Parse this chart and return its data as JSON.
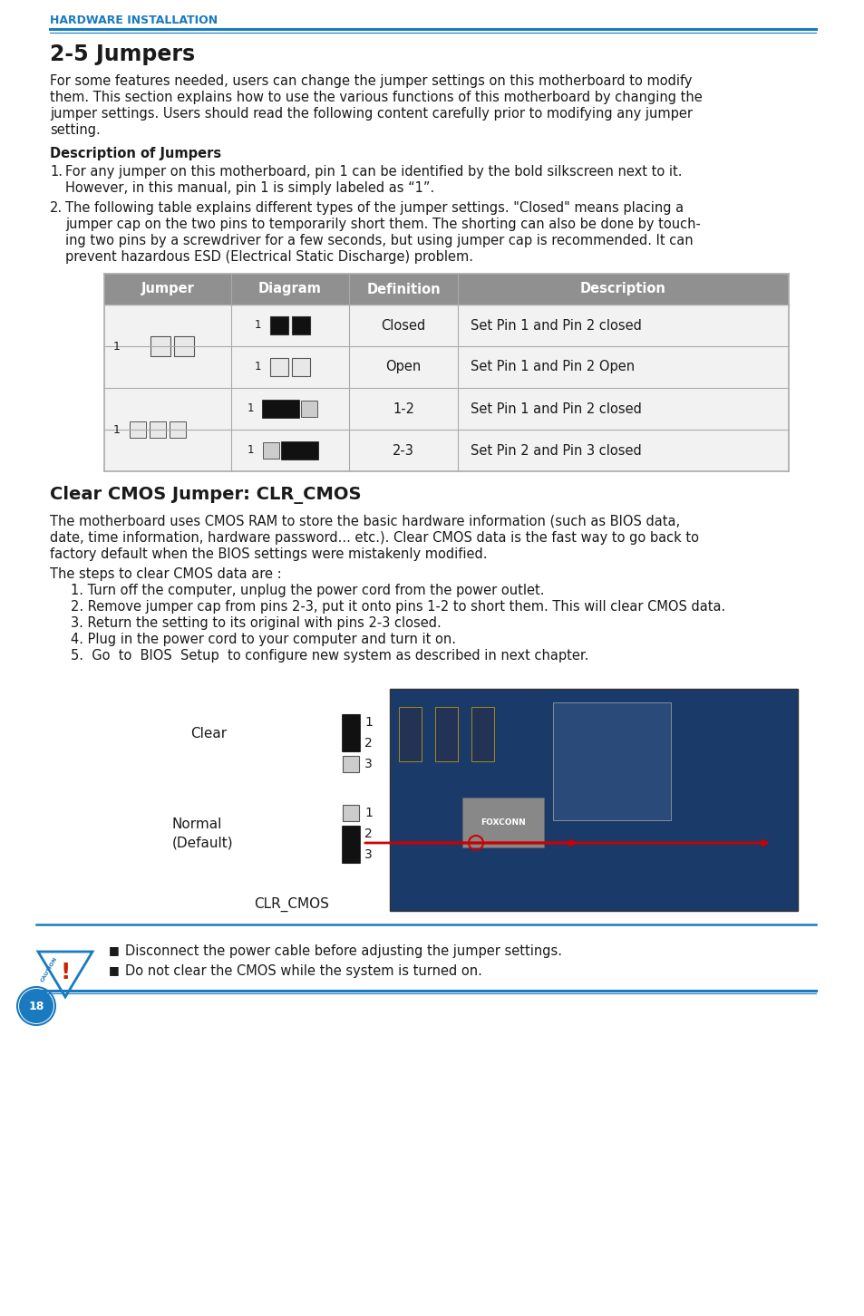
{
  "page_bg": "#ffffff",
  "header_text": "HARDWARE INSTALLATION",
  "header_color": "#1a7abf",
  "blue_color": "#1a7abf",
  "title": "2-5 Jumpers",
  "para1_lines": [
    "For some features needed, users can change the jumper settings on this motherboard to modify",
    "them. This section explains how to use the various functions of this motherboard by changing the",
    "jumper settings. Users should read the following content carefully prior to modifying any jumper",
    "setting."
  ],
  "desc_title": "Description of Jumpers",
  "item1_lines": [
    "For any jumper on this motherboard, pin 1 can be identified by the bold silkscreen next to it.",
    "However, in this manual, pin 1 is simply labeled as “1”."
  ],
  "item2_lines": [
    "The following table explains different types of the jumper settings. \"Closed\" means placing a",
    "jumper cap on the two pins to temporarily short them. The shorting can also be done by touch-",
    "ing two pins by a screwdriver for a few seconds, but using jumper cap is recommended. It can",
    "prevent hazardous ESD (Electrical Static Discharge) problem."
  ],
  "table_hdr_bg": "#909090",
  "table_hdr_cols": [
    "Jumper",
    "Diagram",
    "Definition",
    "Description"
  ],
  "table_row_descs": [
    "Set Pin 1 and Pin 2 closed",
    "Set Pin 1 and Pin 2 Open",
    "Set Pin 1 and Pin 2 closed",
    "Set Pin 2 and Pin 3 closed"
  ],
  "table_defs": [
    "Closed",
    "Open",
    "1-2",
    "2-3"
  ],
  "section_title": "Clear CMOS Jumper: CLR_CMOS",
  "cmos_lines": [
    "The motherboard uses CMOS RAM to store the basic hardware information (such as BIOS data,",
    "date, time information, hardware password... etc.). Clear CMOS data is the fast way to go back to",
    "factory default when the BIOS settings were mistakenly modified."
  ],
  "steps_intro": "The steps to clear CMOS data are :",
  "steps": [
    "1. Turn off the computer, unplug the power cord from the power outlet.",
    "2. Remove jumper cap from pins 2-3, put it onto pins 1-2 to short them. This will clear CMOS data.",
    "3. Return the setting to its original with pins 2-3 closed.",
    "4. Plug in the power cord to your computer and turn it on.",
    "5.  Go  to  BIOS  Setup  to configure new system as described in next chapter."
  ],
  "caution1": "Disconnect the power cable before adjusting the jumper settings.",
  "caution2": "Do not clear the CMOS while the system is turned on.",
  "page_num": "18"
}
